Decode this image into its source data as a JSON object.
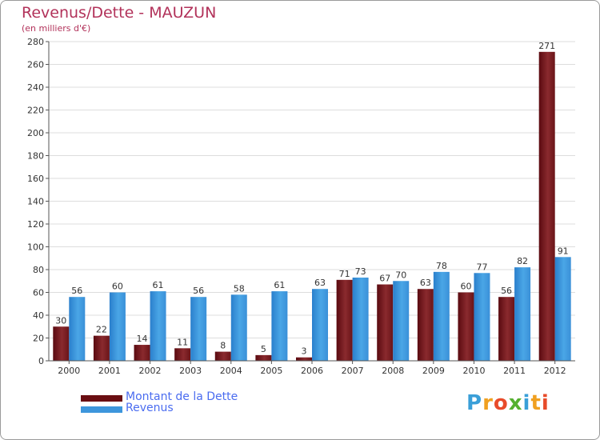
{
  "title": "Revenus/Dette - MAUZUN",
  "subtitle": "(en milliers d'€)",
  "chart_data": {
    "type": "bar",
    "title": "Revenus/Dette - MAUZUN",
    "ylabel": "(en milliers d'€)",
    "xlabel": "",
    "categories": [
      "2000",
      "2001",
      "2002",
      "2003",
      "2004",
      "2005",
      "2006",
      "2007",
      "2008",
      "2009",
      "2010",
      "2011",
      "2012"
    ],
    "series": [
      {
        "name": "Montant de la Dette",
        "values": [
          30,
          22,
          14,
          11,
          8,
          5,
          3,
          71,
          67,
          63,
          60,
          56,
          271
        ]
      },
      {
        "name": "Revenus",
        "values": [
          56,
          60,
          61,
          56,
          58,
          61,
          63,
          73,
          70,
          78,
          77,
          82,
          91
        ]
      }
    ],
    "ylim": [
      0,
      280
    ],
    "yticks": [
      0,
      20,
      40,
      60,
      80,
      100,
      120,
      140,
      160,
      180,
      200,
      220,
      240,
      260,
      280
    ],
    "grid": true,
    "legend": "bottom-left"
  },
  "legend": {
    "debt_label": "Montant de la Dette",
    "revenue_label": "Revenus"
  },
  "colors": {
    "debt": "#7a1820",
    "revenue": "#3d96dc",
    "title": "#b2325a"
  },
  "logo": {
    "letters": [
      "P",
      "r",
      "o",
      "x",
      "i",
      "t",
      "i"
    ],
    "colors": [
      "#3a9fd8",
      "#f0a020",
      "#e84b2a",
      "#55b030",
      "#3a9fd8",
      "#f0a020",
      "#e84b2a"
    ]
  }
}
